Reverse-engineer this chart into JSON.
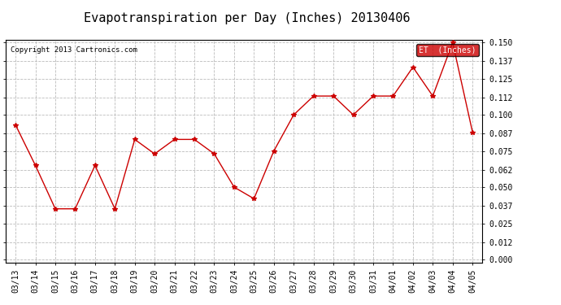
{
  "title": "Evapotranspiration per Day (Inches) 20130406",
  "copyright": "Copyright 2013 Cartronics.com",
  "legend_label": "ET  (Inches)",
  "x_labels": [
    "03/13",
    "03/14",
    "03/15",
    "03/16",
    "03/17",
    "03/18",
    "03/19",
    "03/20",
    "03/21",
    "03/22",
    "03/23",
    "03/24",
    "03/25",
    "03/26",
    "03/27",
    "03/28",
    "03/29",
    "03/30",
    "03/31",
    "04/01",
    "04/02",
    "04/03",
    "04/04",
    "04/05"
  ],
  "y_values": [
    0.093,
    0.065,
    0.035,
    0.035,
    0.065,
    0.035,
    0.083,
    0.073,
    0.083,
    0.083,
    0.073,
    0.05,
    0.042,
    0.075,
    0.1,
    0.113,
    0.113,
    0.1,
    0.113,
    0.113,
    0.133,
    0.113,
    0.15,
    0.088
  ],
  "y_ticks": [
    0.0,
    0.012,
    0.025,
    0.037,
    0.05,
    0.062,
    0.075,
    0.087,
    0.1,
    0.112,
    0.125,
    0.137,
    0.15
  ],
  "line_color": "#cc0000",
  "marker_color": "#cc0000",
  "grid_color": "#bbbbbb",
  "bg_color": "#ffffff",
  "legend_bg": "#cc0000",
  "legend_text_color": "#ffffff",
  "title_fontsize": 11,
  "tick_fontsize": 7,
  "copyright_fontsize": 6.5,
  "ylim": [
    0.0,
    0.15
  ],
  "border_color": "#000000"
}
